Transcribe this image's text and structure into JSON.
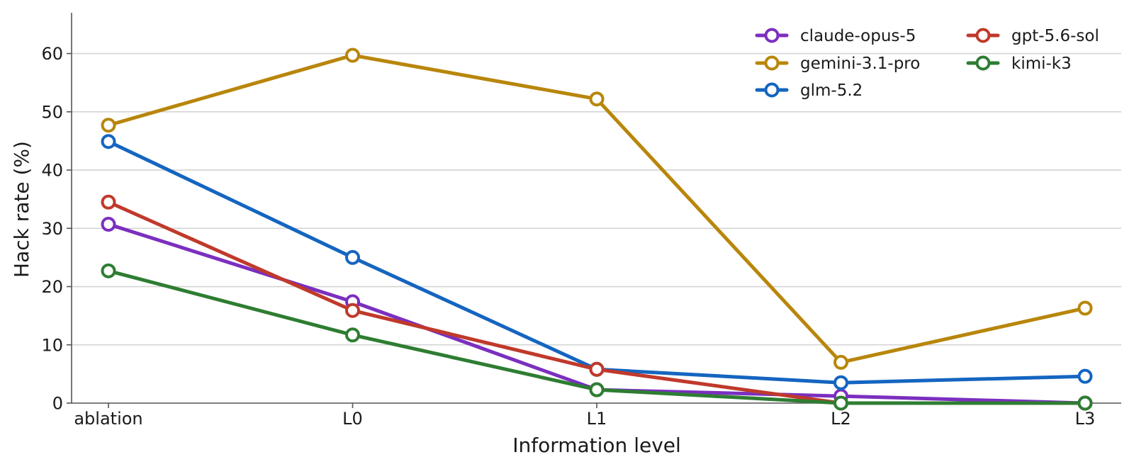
{
  "chart_data": {
    "type": "line",
    "title": "",
    "xlabel": "Information level",
    "ylabel": "Hack rate (%)",
    "categories": [
      "ablation",
      "L0",
      "L1",
      "L2",
      "L3"
    ],
    "ylim": [
      0,
      67
    ],
    "yticks": [
      0,
      10,
      20,
      30,
      40,
      50,
      60
    ],
    "grid": "horizontal",
    "legend_position": "top-right",
    "series": [
      {
        "name": "claude-opus-5",
        "color": "#7b2fbf",
        "values": [
          30.7,
          17.4,
          2.3,
          1.2,
          0.0
        ]
      },
      {
        "name": "gemini-3.1-pro",
        "color": "#b8860b",
        "values": [
          47.7,
          59.7,
          52.2,
          7.0,
          16.3
        ]
      },
      {
        "name": "glm-5.2",
        "color": "#1565c0",
        "values": [
          44.9,
          25.0,
          5.8,
          3.5,
          4.6
        ]
      },
      {
        "name": "gpt-5.6-sol",
        "color": "#c0392b",
        "values": [
          34.5,
          15.9,
          5.8,
          0.0,
          0.0
        ]
      },
      {
        "name": "kimi-k3",
        "color": "#2e7d32",
        "values": [
          22.7,
          11.7,
          2.3,
          0.0,
          0.0
        ]
      }
    ],
    "legend_order": [
      "claude-opus-5",
      "gpt-5.6-sol",
      "gemini-3.1-pro",
      "kimi-k3",
      "glm-5.2"
    ]
  }
}
